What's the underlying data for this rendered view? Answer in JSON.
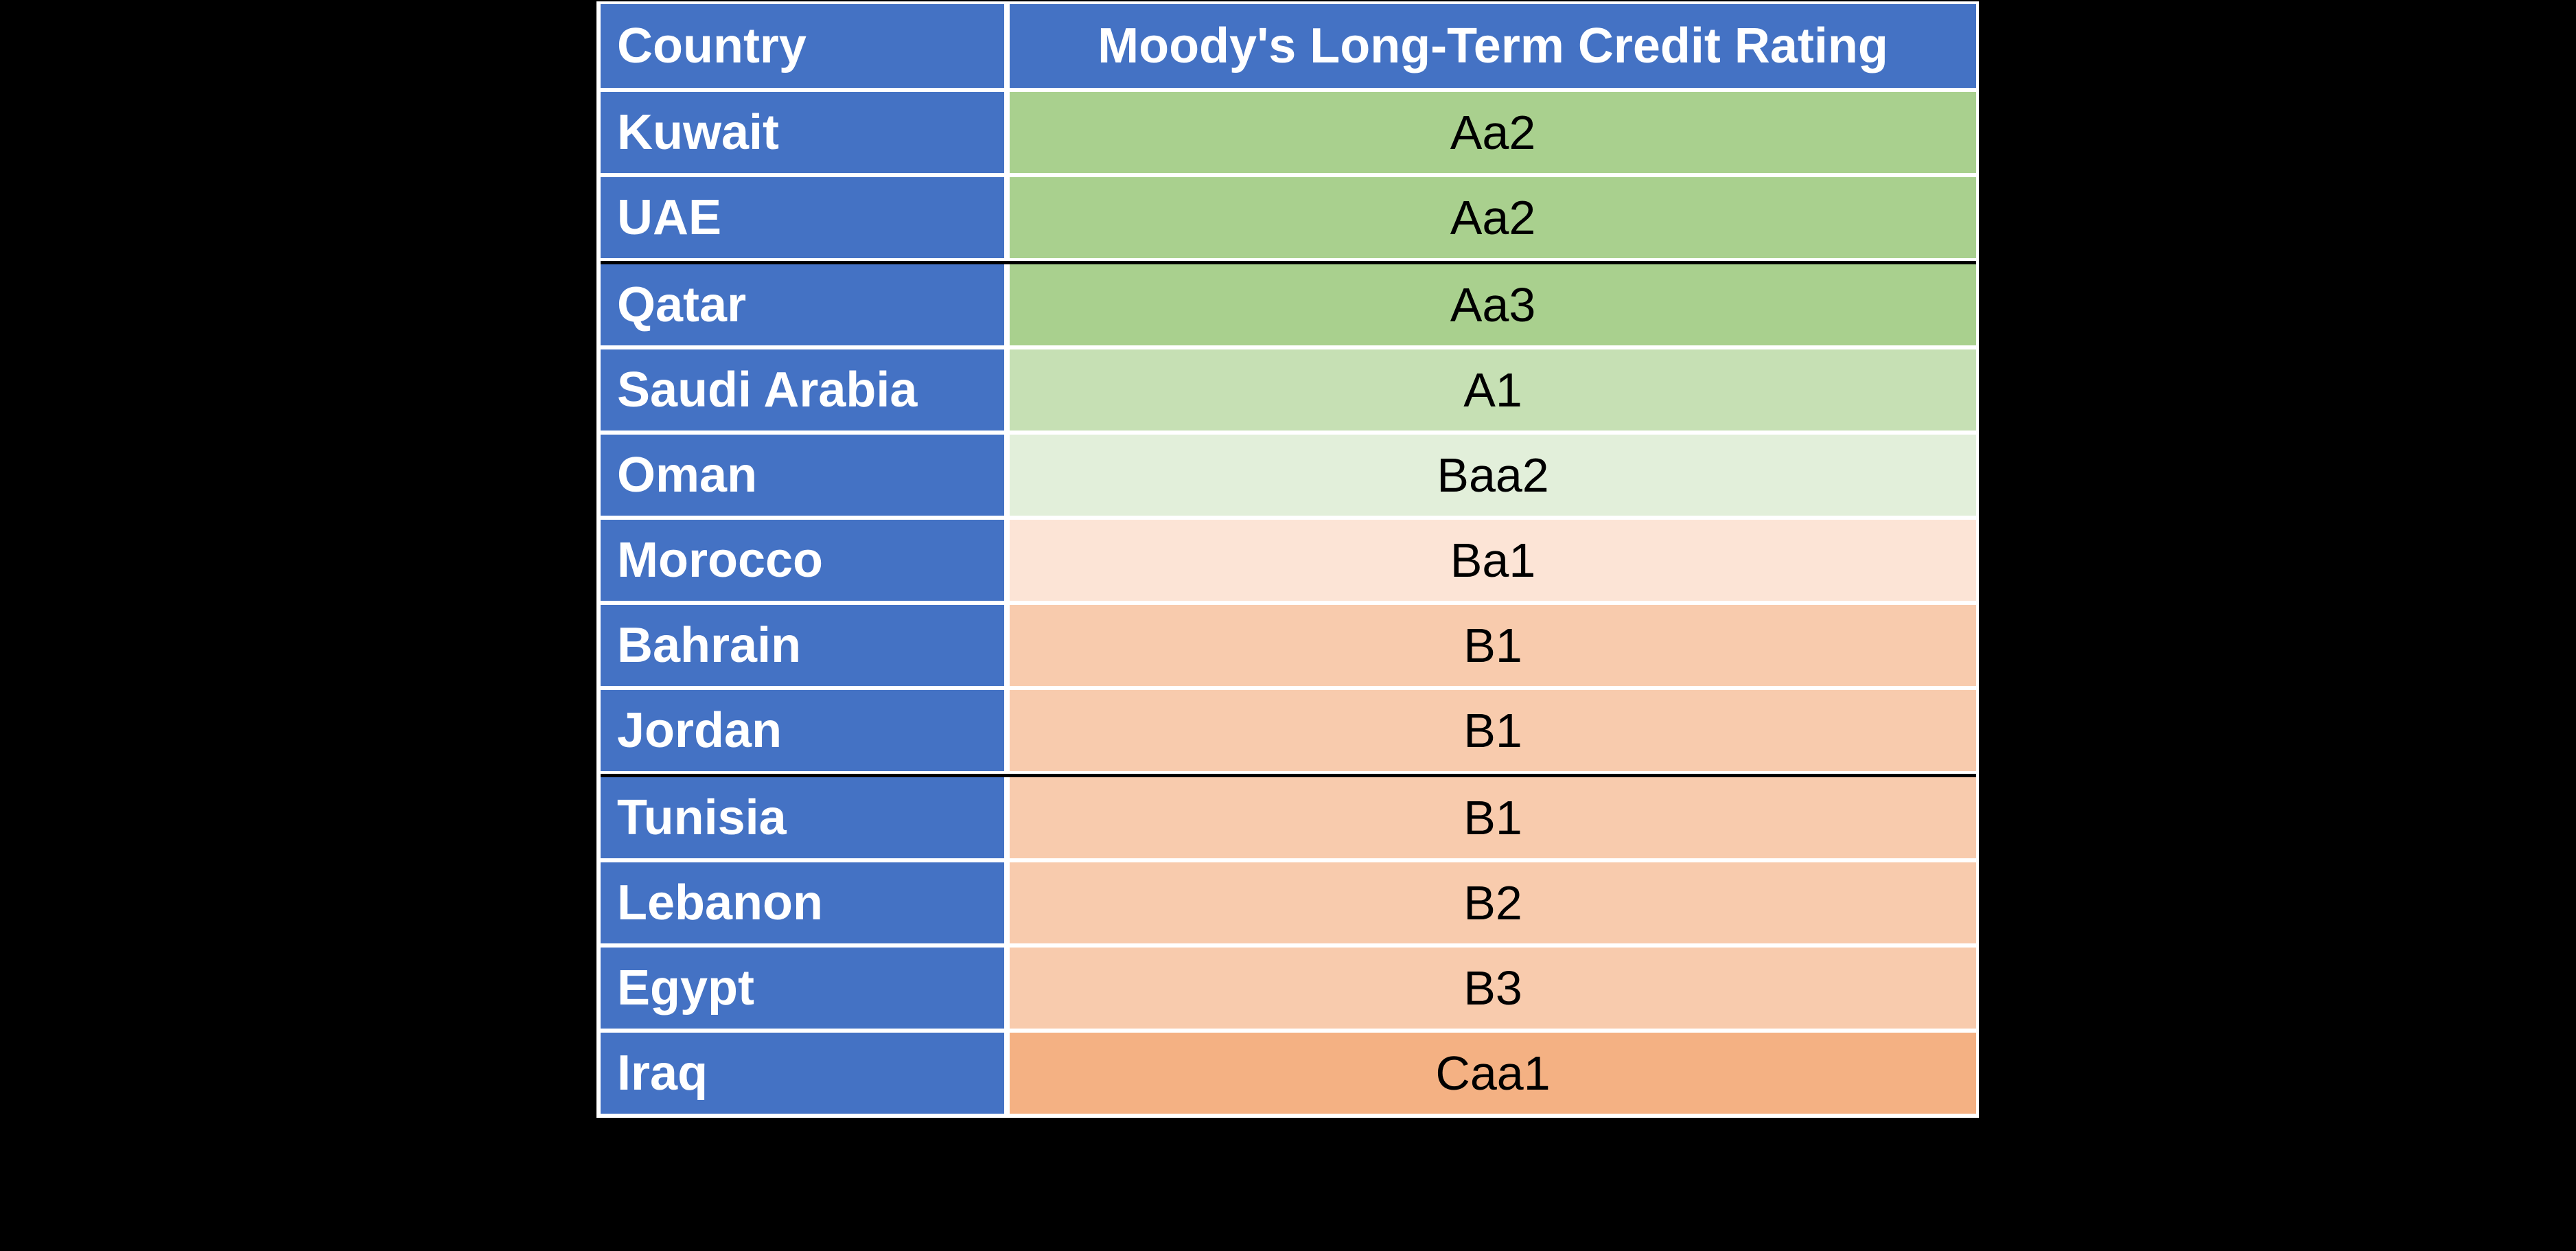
{
  "page": {
    "background_color": "#000000"
  },
  "table": {
    "header": {
      "country_label": "Country",
      "rating_label": "Moody's Long-Term Credit Rating",
      "bg": "#4472C4",
      "text_color": "#FFFFFF"
    },
    "country_cell_bg": "#4472C4",
    "separator_color": "#FFFFFF",
    "divider_color": "#000000",
    "rows": [
      {
        "country": "Kuwait",
        "rating": "Aa2",
        "rating_bg": "#A9D08E",
        "divider_below": false
      },
      {
        "country": "UAE",
        "rating": "Aa2",
        "rating_bg": "#A9D08E",
        "divider_below": true
      },
      {
        "country": "Qatar",
        "rating": "Aa3",
        "rating_bg": "#A9D08E",
        "divider_below": false
      },
      {
        "country": "Saudi Arabia",
        "rating": "A1",
        "rating_bg": "#C6E0B4",
        "divider_below": false
      },
      {
        "country": "Oman",
        "rating": "Baa2",
        "rating_bg": "#E2EFDA",
        "divider_below": false
      },
      {
        "country": "Morocco",
        "rating": "Ba1",
        "rating_bg": "#FCE4D6",
        "divider_below": false
      },
      {
        "country": "Bahrain",
        "rating": "B1",
        "rating_bg": "#F8CBAD",
        "divider_below": false
      },
      {
        "country": "Jordan",
        "rating": "B1",
        "rating_bg": "#F8CBAD",
        "divider_below": true
      },
      {
        "country": "Tunisia",
        "rating": "B1",
        "rating_bg": "#F8CBAD",
        "divider_below": false
      },
      {
        "country": "Lebanon",
        "rating": "B2",
        "rating_bg": "#F8CBAD",
        "divider_below": false
      },
      {
        "country": "Egypt",
        "rating": "B3",
        "rating_bg": "#F8CBAD",
        "divider_below": false
      },
      {
        "country": "Iraq",
        "rating": "Caa1",
        "rating_bg": "#F4B183",
        "divider_below": false
      }
    ]
  },
  "chart_data": {
    "type": "table",
    "title": "",
    "columns": [
      "Country",
      "Moody's Long-Term Credit Rating"
    ],
    "rows": [
      [
        "Kuwait",
        "Aa2"
      ],
      [
        "UAE",
        "Aa2"
      ],
      [
        "Qatar",
        "Aa3"
      ],
      [
        "Saudi Arabia",
        "A1"
      ],
      [
        "Oman",
        "Baa2"
      ],
      [
        "Morocco",
        "Ba1"
      ],
      [
        "Bahrain",
        "B1"
      ],
      [
        "Jordan",
        "B1"
      ],
      [
        "Tunisia",
        "B1"
      ],
      [
        "Lebanon",
        "B2"
      ],
      [
        "Egypt",
        "B3"
      ],
      [
        "Iraq",
        "Caa1"
      ]
    ],
    "layout_hints": {
      "header_bg": "#4472C4",
      "country_column_bg": "#4472C4",
      "rating_color_scale": [
        "#A9D08E",
        "#C6E0B4",
        "#E2EFDA",
        "#FCE4D6",
        "#F8CBAD",
        "#F4B183"
      ],
      "page_background": "#000000"
    }
  }
}
